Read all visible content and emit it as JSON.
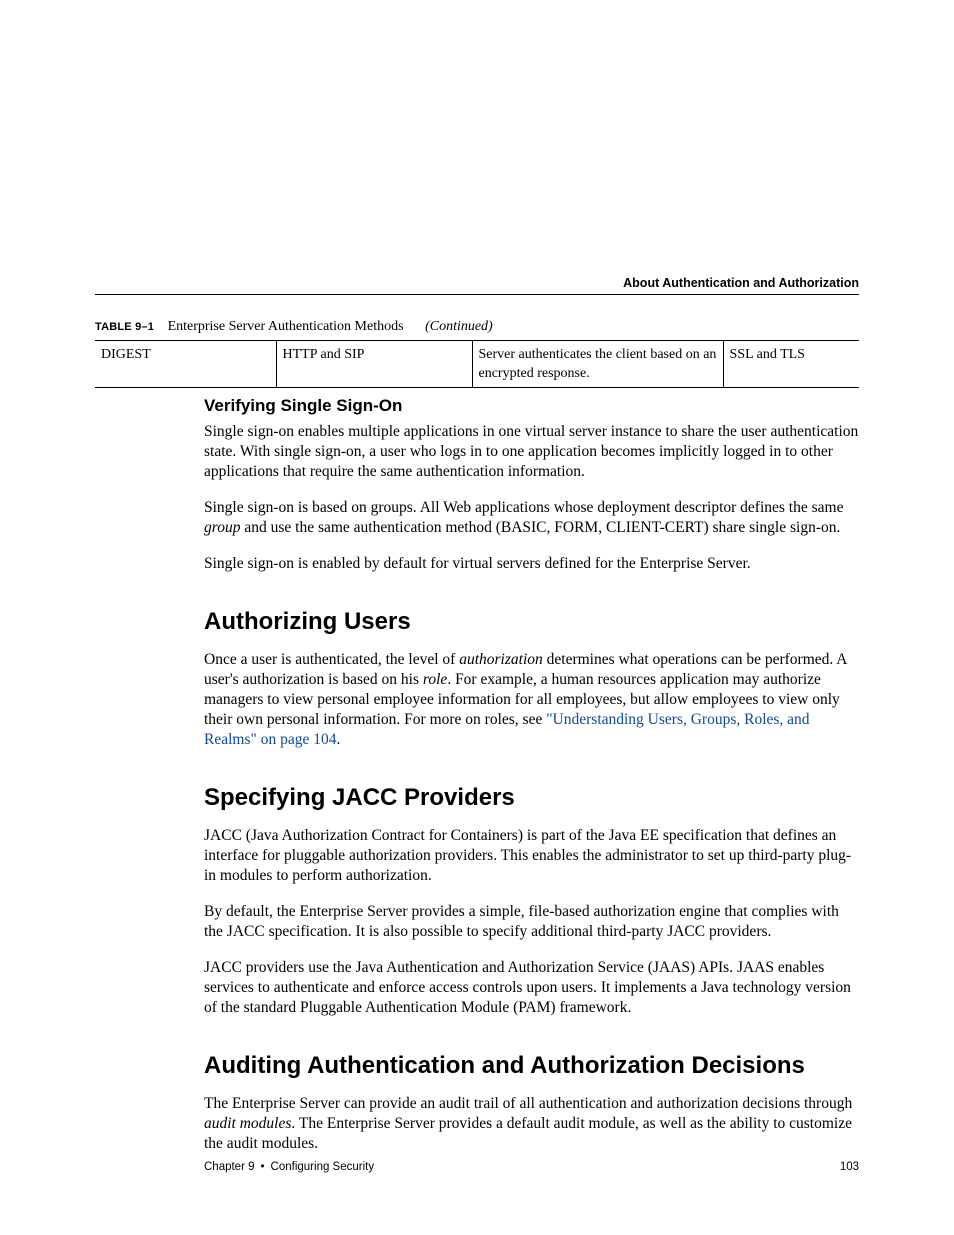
{
  "running_header": "About Authentication and Authorization",
  "table": {
    "label": "TABLE 9–1",
    "title": "Enterprise Server Authentication Methods",
    "continued": "(Continued)",
    "row": {
      "method": "DIGEST",
      "protocol": "HTTP and SIP",
      "description": "Server authenticates the client based on an encrypted response.",
      "encryption": "SSL and TLS"
    }
  },
  "h3_verifying": "Verifying Single Sign-On",
  "p_sso_1": "Single sign-on enables multiple applications in one virtual server instance to share the user authentication state. With single sign-on, a user who logs in to one application becomes implicitly logged in to other applications that require the same authentication information.",
  "p_sso_2a": "Single sign-on is based on groups. All Web applications whose deployment descriptor defines the same ",
  "p_sso_2_group": "group",
  "p_sso_2b": " and use the same authentication method (BASIC, FORM, CLIENT-CERT) share single sign-on.",
  "p_sso_3": "Single sign-on is enabled by default for virtual servers defined for the Enterprise Server.",
  "h2_auth_users": "Authorizing Users",
  "p_auth_a": "Once a user is authenticated, the level of ",
  "p_auth_authorization": "authorization",
  "p_auth_b": " determines what operations can be performed. A user's authorization is based on his ",
  "p_auth_role": "role",
  "p_auth_c": ". For example, a human resources application may authorize managers to view personal employee information for all employees, but allow employees to view only their own personal information. For more on roles, see ",
  "p_auth_link": "\"Understanding Users, Groups, Roles, and Realms\" on page 104",
  "p_auth_d": ".",
  "h2_jacc": "Specifying JACC Providers",
  "p_jacc_1": "JACC (Java Authorization Contract for Containers) is part of the Java EE specification that defines an interface for pluggable authorization providers. This enables the administrator to set up third-party plug-in modules to perform authorization.",
  "p_jacc_2": "By default, the Enterprise Server provides a simple, file-based authorization engine that complies with the JACC specification. It is also possible to specify additional third-party JACC providers.",
  "p_jacc_3": "JACC providers use the Java Authentication and Authorization Service (JAAS) APIs. JAAS enables services to authenticate and enforce access controls upon users. It implements a Java technology version of the standard Pluggable Authentication Module (PAM) framework.",
  "h2_audit": "Auditing Authentication and Authorization Decisions",
  "p_audit_a": "The Enterprise Server can provide an audit trail of all authentication and authorization decisions through ",
  "p_audit_modules": "audit modules",
  "p_audit_b": ". The Enterprise Server provides a default audit module, as well as the ability to customize the audit modules.",
  "footer": {
    "chapter": "Chapter 9",
    "title": "Configuring Security",
    "page": "103"
  }
}
